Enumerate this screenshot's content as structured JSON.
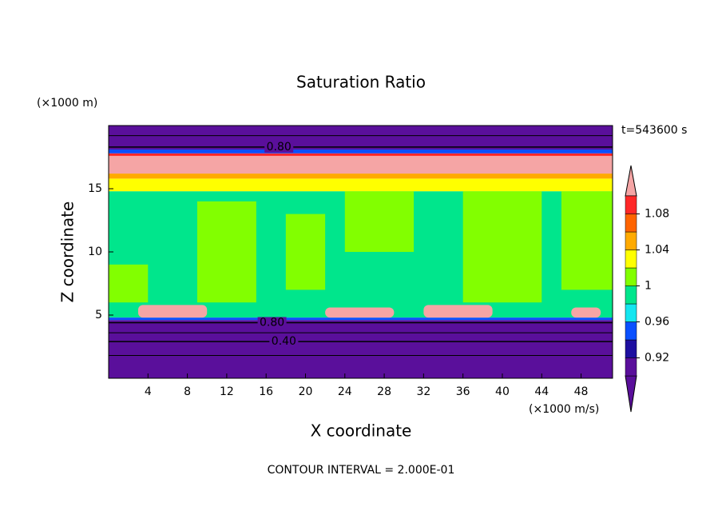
{
  "chart_data": {
    "type": "contour",
    "title": "Saturation Ratio",
    "xlabel": "X coordinate",
    "ylabel": "Z coordinate",
    "x_unit": "(×1000 m/s)",
    "y_unit": "(×1000 m)",
    "time_label": "t=543600 s",
    "footnote": "CONTOUR INTERVAL = 2.000E-01",
    "xlim": [
      0,
      51.2
    ],
    "ylim": [
      0,
      20
    ],
    "xticks": [
      4,
      8,
      12,
      16,
      20,
      24,
      28,
      32,
      36,
      40,
      44,
      48
    ],
    "yticks": [
      5,
      10,
      15
    ],
    "levels": [
      0.9,
      0.92,
      0.94,
      0.96,
      0.98,
      1,
      1.02,
      1.04,
      1.06,
      1.08,
      1.1
    ],
    "colorbar_ticks": [
      0.92,
      0.96,
      1,
      1.04,
      1.08
    ],
    "colors": [
      "#5a0f9b",
      "#5a0f9b",
      "#1e0fa0",
      "#0a50ff",
      "#14e6f0",
      "#00e68c",
      "#82ff00",
      "#ffff00",
      "#ffaa00",
      "#ff6400",
      "#ff2828",
      "#f5a5a5"
    ],
    "regions": [
      {
        "x": [
          0,
          51.2
        ],
        "z": [
          4.8,
          14.8
        ],
        "value": 0.99
      },
      {
        "x": [
          9,
          15
        ],
        "z": [
          6,
          14
        ],
        "value": 1.01
      },
      {
        "x": [
          18,
          22
        ],
        "z": [
          7,
          13
        ],
        "value": 1.01
      },
      {
        "x": [
          24,
          31
        ],
        "z": [
          10,
          14.8
        ],
        "value": 1.01
      },
      {
        "x": [
          36,
          44
        ],
        "z": [
          6,
          14.8
        ],
        "value": 1.01
      },
      {
        "x": [
          46,
          51.2
        ],
        "z": [
          7,
          14.8
        ],
        "value": 1.01
      },
      {
        "x": [
          0,
          4
        ],
        "z": [
          6,
          9
        ],
        "value": 1.01
      },
      {
        "x": [
          0,
          51.2
        ],
        "z": [
          14.8,
          15.8
        ],
        "value": 1.03
      },
      {
        "x": [
          0,
          51.2
        ],
        "z": [
          15.8,
          16.2
        ],
        "value": 1.05
      },
      {
        "x": [
          0,
          51.2
        ],
        "z": [
          16.2,
          17.6
        ],
        "value": 1.2
      },
      {
        "x": [
          0,
          51.2
        ],
        "z": [
          17.6,
          17.8
        ],
        "value": 1.09
      },
      {
        "x": [
          0,
          51.2
        ],
        "z": [
          17.8,
          18.1
        ],
        "value": 0.95
      },
      {
        "x": [
          0,
          51.2
        ],
        "z": [
          18.1,
          20
        ],
        "value": 0.7
      },
      {
        "x": [
          0,
          51.2
        ],
        "z": [
          4.6,
          4.8
        ],
        "value": 0.95
      },
      {
        "x": [
          0,
          51.2
        ],
        "z": [
          0,
          4.6
        ],
        "value": 0.5
      },
      {
        "x": [
          3,
          10
        ],
        "z": [
          4.8,
          5.8
        ],
        "value": 1.2
      },
      {
        "x": [
          22,
          29
        ],
        "z": [
          4.8,
          5.6
        ],
        "value": 1.2
      },
      {
        "x": [
          32,
          39
        ],
        "z": [
          4.8,
          5.8
        ],
        "value": 1.2
      },
      {
        "x": [
          47,
          50
        ],
        "z": [
          4.8,
          5.6
        ],
        "value": 1.2
      }
    ],
    "contours": [
      {
        "z": 18.3,
        "label": "0.80",
        "label_x": 17.3
      },
      {
        "z": 4.4,
        "label": "0.80",
        "label_x": 16.6
      },
      {
        "z": 2.9,
        "label": "0.40",
        "label_x": 17.8
      },
      {
        "z": 1.8
      },
      {
        "z": 3.6
      },
      {
        "z": 19.2
      }
    ]
  }
}
